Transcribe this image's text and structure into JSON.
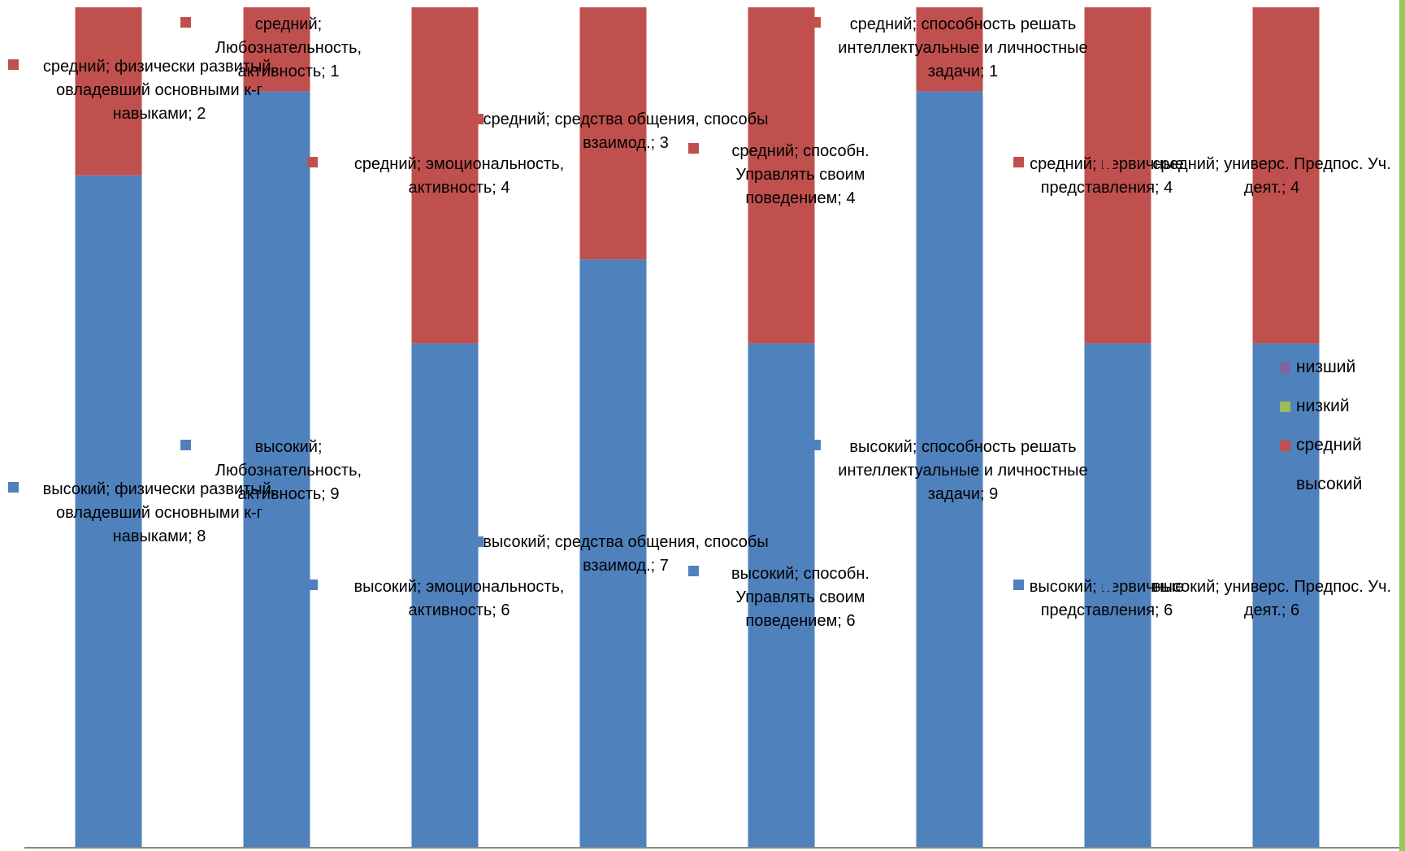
{
  "chart_data": {
    "type": "bar",
    "stacked": true,
    "categories": [
      "физически развитый, овладевший основными к-г навыками",
      "Любознательность, активность",
      "эмоциональность, активность",
      "средства общения, способы взаимод.",
      "способн. Управлять своим поведением",
      "способность решать интеллектуальные и личностные задачи",
      "первичные представления",
      "универс. Предпос. Уч. деят."
    ],
    "series": [
      {
        "name": "высокий",
        "color": "#4f81bd",
        "values": [
          8,
          9,
          6,
          7,
          6,
          9,
          6,
          6
        ]
      },
      {
        "name": "средний",
        "color": "#c0504d",
        "values": [
          2,
          1,
          4,
          3,
          4,
          1,
          4,
          4
        ]
      },
      {
        "name": "низкий",
        "color": "#9bbb59",
        "values": [
          0,
          0,
          0,
          0,
          0,
          0,
          0,
          0
        ]
      },
      {
        "name": "низший",
        "color": "#8064a2",
        "values": [
          0,
          0,
          0,
          0,
          0,
          0,
          0,
          0
        ]
      }
    ],
    "ylim": [
      0,
      10
    ],
    "grid": false,
    "legend": "right",
    "legend_order": [
      "низший",
      "низкий",
      "средний",
      "высокий"
    ],
    "data_labels": [
      {
        "series": "средний",
        "index": 0,
        "text": "средний; физически развитый, овладевший основными к-г навыками; 2"
      },
      {
        "series": "средний",
        "index": 1,
        "text": "средний; Любознательность, активность; 1"
      },
      {
        "series": "средний",
        "index": 2,
        "text": "средний; эмоциональность, активность; 4"
      },
      {
        "series": "средний",
        "index": 3,
        "text": "средний; средства общения, способы взаимод.; 3"
      },
      {
        "series": "средний",
        "index": 4,
        "text": "средний; способн. Управлять своим поведением; 4"
      },
      {
        "series": "средний",
        "index": 5,
        "text": "средний; способность решать интеллектуальные и личностные задачи; 1"
      },
      {
        "series": "средний",
        "index": 6,
        "text": "средний; первичные представления; 4"
      },
      {
        "series": "средний",
        "index": 7,
        "text": "средний; универс. Предпос. Уч. деят.; 4"
      },
      {
        "series": "высокий",
        "index": 0,
        "text": "высокий; физически развитый, овладевший основными к-г навыками; 8"
      },
      {
        "series": "высокий",
        "index": 1,
        "text": "высокий; Любознательность, активность; 9"
      },
      {
        "series": "высокий",
        "index": 2,
        "text": "высокий; эмоциональность, активность; 6"
      },
      {
        "series": "высокий",
        "index": 3,
        "text": "высокий; средства общения, способы взаимод.; 7"
      },
      {
        "series": "высокий",
        "index": 4,
        "text": "высокий; способн. Управлять своим поведением; 6"
      },
      {
        "series": "высокий",
        "index": 5,
        "text": "высокий; способность решать интеллектуальные и личностные задачи; 9"
      },
      {
        "series": "высокий",
        "index": 6,
        "text": "высокий; первичные представления; 6"
      },
      {
        "series": "высокий",
        "index": 7,
        "text": "высокий; универс. Предпос. Уч. деят.; 6"
      }
    ]
  }
}
